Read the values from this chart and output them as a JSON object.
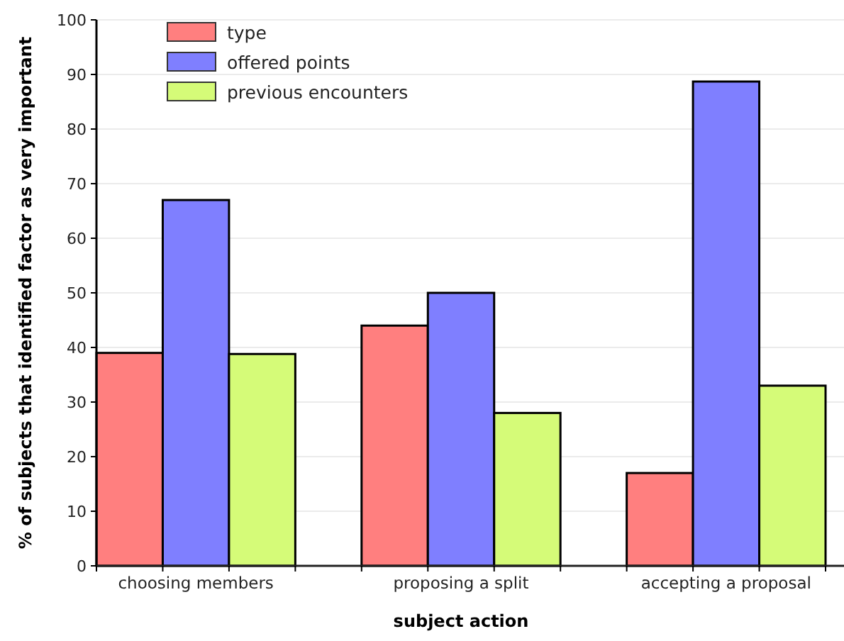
{
  "chart_data": {
    "type": "bar",
    "xlabel": "subject action",
    "ylabel": "% of subjects that identified factor as very important",
    "categories": [
      "choosing members",
      "proposing a split",
      "accepting a proposal"
    ],
    "series": [
      {
        "name": "type",
        "color": "#ff7f7f",
        "values": [
          39,
          44,
          17
        ]
      },
      {
        "name": "offered points",
        "color": "#7f7fff",
        "values": [
          67,
          50,
          88.7
        ]
      },
      {
        "name": "previous encounters",
        "color": "#d5fb78",
        "values": [
          38.8,
          28,
          33
        ]
      }
    ],
    "ylim": [
      0,
      100
    ],
    "yticks": [
      0,
      10,
      20,
      30,
      40,
      50,
      60,
      70,
      80,
      90,
      100
    ],
    "grid": "y",
    "legend": "top left"
  }
}
